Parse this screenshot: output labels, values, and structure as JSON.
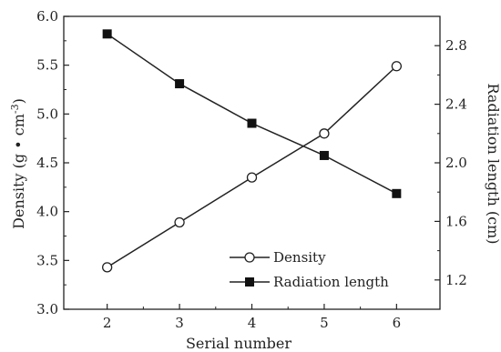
{
  "chart_data": {
    "type": "line",
    "title": "",
    "xlabel": "Serial number",
    "ylabel_left_prefix": "Density (g • cm",
    "ylabel_left_sup": "-3",
    "ylabel_left_suffix": ")",
    "ylabel_right": "Radiation length (cm)",
    "x": [
      2,
      3,
      4,
      5,
      6
    ],
    "xlim": [
      1.4,
      6.6
    ],
    "ylim_left": [
      3.0,
      6.0
    ],
    "ylim_right": [
      1.0,
      3.0
    ],
    "x_ticks": [
      "2",
      "3",
      "4",
      "5",
      "6"
    ],
    "y_left_ticks": [
      "3.0",
      "3.5",
      "4.0",
      "4.5",
      "5.0",
      "5.5",
      "6.0"
    ],
    "y_right_ticks": [
      "1.2",
      "1.6",
      "2.0",
      "2.4",
      "2.8"
    ],
    "grid": false,
    "legend_position": "bottom-right",
    "series": [
      {
        "name": "Density",
        "axis": "left",
        "marker": "open-circle",
        "values": [
          3.43,
          3.89,
          4.35,
          4.8,
          5.49
        ]
      },
      {
        "name": "Radiation length",
        "axis": "right",
        "marker": "filled-square",
        "values": [
          2.88,
          2.54,
          2.27,
          2.05,
          1.79
        ]
      }
    ],
    "colors": {
      "line": "#222222",
      "marker_fill_open": "#ffffff",
      "marker_fill_solid": "#111111"
    }
  }
}
